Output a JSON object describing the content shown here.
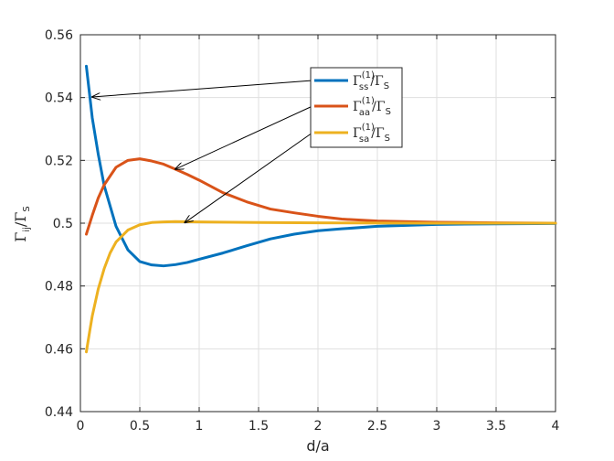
{
  "chart_data": {
    "type": "line",
    "xlabel": "d/a",
    "ylabel": {
      "base": "Γ",
      "sub": "ij",
      "mid": "/Γ",
      "sub2": "S"
    },
    "xlim": [
      0,
      4
    ],
    "ylim": [
      0.44,
      0.56
    ],
    "xticks": [
      0,
      0.5,
      1,
      1.5,
      2,
      2.5,
      3,
      3.5,
      4
    ],
    "xtick_labels": [
      "0",
      "0.5",
      "1",
      "1.5",
      "2",
      "2.5",
      "3",
      "3.5",
      "4"
    ],
    "yticks": [
      0.44,
      0.46,
      0.48,
      0.5,
      0.52,
      0.54,
      0.56
    ],
    "ytick_labels": [
      "0.44",
      "0.46",
      "0.48",
      "0.5",
      "0.52",
      "0.54",
      "0.56"
    ],
    "grid": true,
    "legend_position": "top-right",
    "series": [
      {
        "name": "Γss(1)/ΓS",
        "label": {
          "sub": "ss",
          "sup": "(1)",
          "tail": "S"
        },
        "color": "#0072BD",
        "x": [
          0.05,
          0.1,
          0.15,
          0.2,
          0.3,
          0.4,
          0.5,
          0.6,
          0.7,
          0.8,
          0.9,
          1.0,
          1.2,
          1.4,
          1.6,
          1.8,
          2.0,
          2.2,
          2.5,
          3.0,
          3.5,
          4.0
        ],
        "y": [
          0.55,
          0.5335,
          0.522,
          0.512,
          0.499,
          0.4915,
          0.4878,
          0.4867,
          0.4864,
          0.4868,
          0.4875,
          0.4885,
          0.4905,
          0.4928,
          0.495,
          0.4965,
          0.4976,
          0.4982,
          0.499,
          0.4996,
          0.4998,
          0.4999
        ]
      },
      {
        "name": "Γaa(1)/ΓS",
        "label": {
          "sub": "aa",
          "sup": "(1)",
          "tail": "S"
        },
        "color": "#D95319",
        "x": [
          0.05,
          0.1,
          0.15,
          0.2,
          0.3,
          0.4,
          0.5,
          0.6,
          0.7,
          0.8,
          0.9,
          1.0,
          1.2,
          1.4,
          1.6,
          1.8,
          2.0,
          2.2,
          2.5,
          3.0,
          3.5,
          4.0
        ],
        "y": [
          0.4965,
          0.5025,
          0.508,
          0.5122,
          0.5178,
          0.52,
          0.5205,
          0.5198,
          0.5188,
          0.5172,
          0.5155,
          0.5137,
          0.5097,
          0.5068,
          0.5045,
          0.5033,
          0.5022,
          0.5013,
          0.5007,
          0.5003,
          0.5001,
          0.5
        ]
      },
      {
        "name": "Γsa(1)/ΓS",
        "label": {
          "sub": "sa",
          "sup": "(1)",
          "tail": "S"
        },
        "color": "#EDB120",
        "x": [
          0.05,
          0.08,
          0.1,
          0.15,
          0.2,
          0.25,
          0.3,
          0.4,
          0.5,
          0.6,
          0.7,
          0.8,
          1.0,
          1.5,
          2.0,
          3.0,
          4.0
        ],
        "y": [
          0.459,
          0.466,
          0.4705,
          0.479,
          0.4855,
          0.4905,
          0.494,
          0.4978,
          0.4995,
          0.5002,
          0.5004,
          0.5005,
          0.5004,
          0.5002,
          0.5001,
          0.5,
          0.5
        ]
      }
    ],
    "annotations": [
      {
        "series": 0,
        "x": 0.1,
        "y": 0.5402
      },
      {
        "series": 1,
        "x": 0.8,
        "y": 0.5172
      },
      {
        "series": 2,
        "x": 0.88,
        "y": 0.5002
      }
    ]
  }
}
